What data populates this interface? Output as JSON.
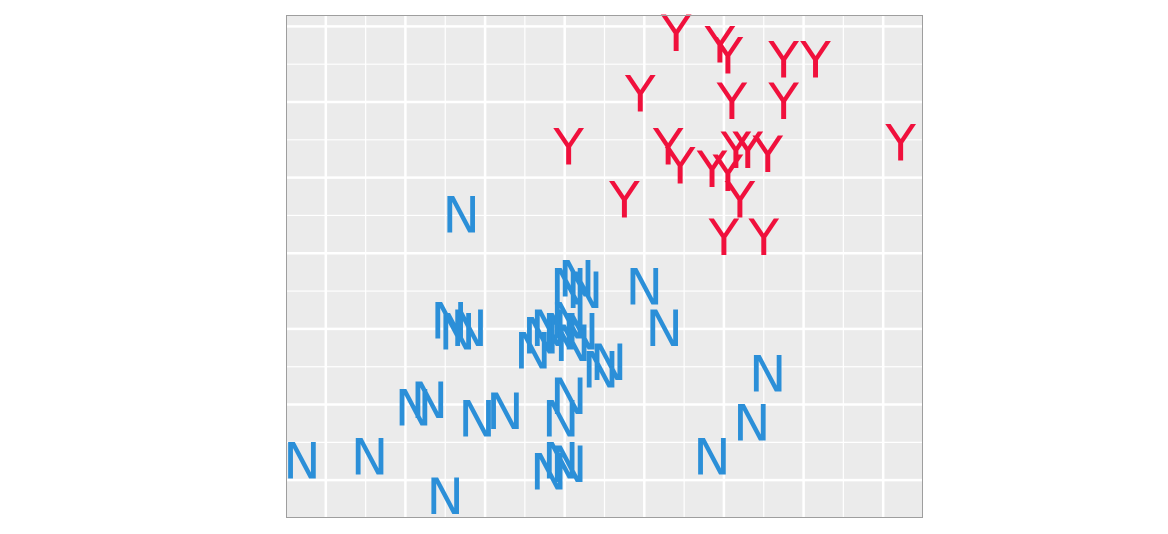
{
  "chart_data": {
    "type": "scatter",
    "title": "",
    "xlabel": "",
    "ylabel": "",
    "xlim": [
      0.0,
      8.0
    ],
    "ylim": [
      0.0,
      6.65
    ],
    "grid": true,
    "legend": "none",
    "colors": {
      "panel": "#ebebeb",
      "grid": "#ffffff",
      "border": "#9e9e9e"
    },
    "series": [
      {
        "label_glyph": "Y",
        "color": "#f0103c",
        "points": [
          {
            "x": 4.9,
            "y": 6.4
          },
          {
            "x": 5.45,
            "y": 6.25
          },
          {
            "x": 5.55,
            "y": 6.1
          },
          {
            "x": 6.25,
            "y": 6.05
          },
          {
            "x": 6.65,
            "y": 6.05
          },
          {
            "x": 4.45,
            "y": 5.6
          },
          {
            "x": 5.6,
            "y": 5.5
          },
          {
            "x": 6.25,
            "y": 5.5
          },
          {
            "x": 3.55,
            "y": 4.9
          },
          {
            "x": 4.8,
            "y": 4.9
          },
          {
            "x": 5.65,
            "y": 4.85
          },
          {
            "x": 5.8,
            "y": 4.85
          },
          {
            "x": 6.05,
            "y": 4.8
          },
          {
            "x": 7.72,
            "y": 4.95
          },
          {
            "x": 4.95,
            "y": 4.65
          },
          {
            "x": 5.35,
            "y": 4.6
          },
          {
            "x": 5.55,
            "y": 4.55
          },
          {
            "x": 4.25,
            "y": 4.2
          },
          {
            "x": 5.7,
            "y": 4.2
          },
          {
            "x": 5.5,
            "y": 3.7
          },
          {
            "x": 6.0,
            "y": 3.7
          }
        ]
      },
      {
        "label_glyph": "N",
        "color": "#2b8fd8",
        "points": [
          {
            "x": 2.2,
            "y": 4.0
          },
          {
            "x": 3.55,
            "y": 3.05
          },
          {
            "x": 3.65,
            "y": 3.15
          },
          {
            "x": 3.75,
            "y": 3.0
          },
          {
            "x": 4.5,
            "y": 3.05
          },
          {
            "x": 2.05,
            "y": 2.6
          },
          {
            "x": 2.15,
            "y": 2.45
          },
          {
            "x": 2.3,
            "y": 2.5
          },
          {
            "x": 3.2,
            "y": 2.4
          },
          {
            "x": 3.3,
            "y": 2.5
          },
          {
            "x": 3.45,
            "y": 2.45
          },
          {
            "x": 3.55,
            "y": 2.6
          },
          {
            "x": 3.7,
            "y": 2.45
          },
          {
            "x": 4.75,
            "y": 2.5
          },
          {
            "x": 3.1,
            "y": 2.2
          },
          {
            "x": 3.6,
            "y": 2.3
          },
          {
            "x": 3.95,
            "y": 1.95
          },
          {
            "x": 4.05,
            "y": 2.05
          },
          {
            "x": 6.05,
            "y": 1.9
          },
          {
            "x": 1.6,
            "y": 1.45
          },
          {
            "x": 1.8,
            "y": 1.55
          },
          {
            "x": 3.55,
            "y": 1.6
          },
          {
            "x": 2.4,
            "y": 1.3
          },
          {
            "x": 2.75,
            "y": 1.4
          },
          {
            "x": 3.45,
            "y": 1.3
          },
          {
            "x": 5.85,
            "y": 1.25
          },
          {
            "x": 0.2,
            "y": 0.75
          },
          {
            "x": 1.05,
            "y": 0.8
          },
          {
            "x": 3.3,
            "y": 0.6
          },
          {
            "x": 3.45,
            "y": 0.75
          },
          {
            "x": 3.55,
            "y": 0.7
          },
          {
            "x": 5.35,
            "y": 0.8
          },
          {
            "x": 2.0,
            "y": 0.28
          }
        ]
      }
    ]
  }
}
